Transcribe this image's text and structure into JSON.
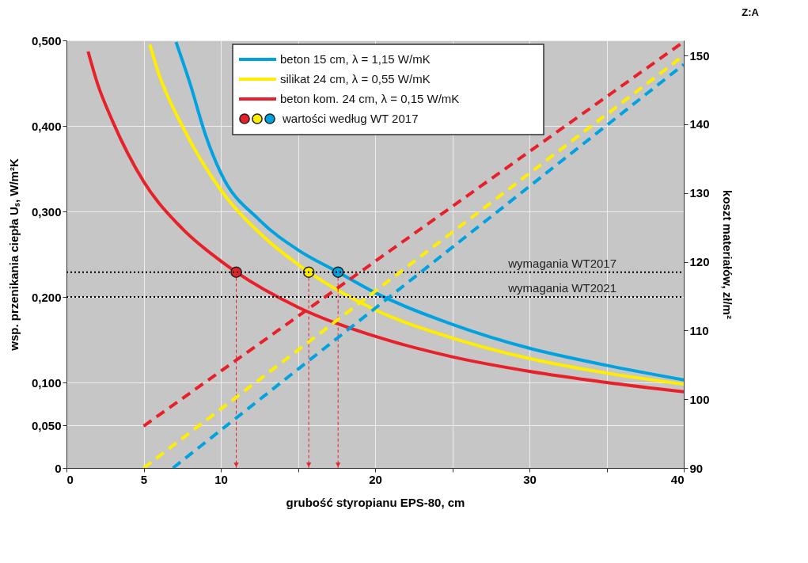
{
  "chart_data": {
    "type": "line",
    "xlabel": "grubość styropianu EPS-80, cm",
    "ylabel": "wsp. przenikania ciepła Uₛ, W/m²K",
    "y2label": "koszt materiałów, zł/m²",
    "annotations": [
      "Z:A"
    ],
    "xlim": [
      0,
      40
    ],
    "xticks": [
      0,
      5,
      10,
      {
        "value": 15,
        "label": null
      },
      20,
      {
        "value": 25,
        "label": null
      },
      30,
      {
        "value": 35,
        "label": null
      },
      40
    ],
    "ylim": [
      0,
      0.5
    ],
    "yticks": [
      {
        "value": 0,
        "label": "0"
      },
      {
        "value": 0.05,
        "label": "0,050"
      },
      {
        "value": 0.1,
        "label": "0,100"
      },
      {
        "value": 0.2,
        "label": "0,200"
      },
      {
        "value": 0.3,
        "label": "0,300"
      },
      {
        "value": 0.4,
        "label": "0,400"
      },
      {
        "value": 0.5,
        "label": "0,500"
      }
    ],
    "y2lim": [
      90,
      152.2
    ],
    "y2ticks": [
      90,
      100,
      110,
      120,
      130,
      140,
      150
    ],
    "grid": true,
    "legend": "top",
    "series": [
      {
        "name": "beton 15 cm, λ = 1,15 W/mK",
        "color": "#00a3e0",
        "line_style": "solid",
        "x": [
          7.1,
          8,
          9,
          10,
          12.5,
          15,
          17.6,
          20,
          25,
          30,
          35,
          40
        ],
        "values": [
          0.498,
          0.45,
          0.39,
          0.345,
          0.29,
          0.255,
          0.229,
          0.205,
          0.168,
          0.14,
          0.12,
          0.103
        ]
      },
      {
        "name": "silikat 24 cm, λ = 0,55 W/mK",
        "color": "#ffee00",
        "line_style": "solid",
        "x": [
          5.4,
          6,
          7.5,
          10,
          12.5,
          15,
          15.7,
          20,
          25,
          30,
          35,
          40
        ],
        "values": [
          0.495,
          0.46,
          0.4,
          0.325,
          0.275,
          0.238,
          0.229,
          0.185,
          0.152,
          0.128,
          0.111,
          0.098
        ]
      },
      {
        "name": "beton kom. 24 cm, λ = 0,15 W/mK",
        "color": "#e8202a",
        "line_style": "solid",
        "x": [
          1.4,
          2,
          3,
          5,
          7.5,
          10,
          11,
          15,
          20,
          25,
          30,
          35,
          40
        ],
        "values": [
          0.487,
          0.45,
          0.405,
          0.335,
          0.28,
          0.242,
          0.229,
          0.188,
          0.154,
          0.13,
          0.113,
          0.1,
          0.089
        ]
      },
      {
        "color": "#e8202a",
        "line_style": "dashed",
        "axis": "y2",
        "x": [
          5,
          40
        ],
        "values": [
          96.1,
          152
        ]
      },
      {
        "color": "#ffee00",
        "line_style": "dashed",
        "axis": "y2",
        "x": [
          5,
          40
        ],
        "values": [
          90,
          150
        ]
      },
      {
        "color": "#00a3e0",
        "line_style": "dashed",
        "axis": "y2",
        "x": [
          6.9,
          40
        ],
        "values": [
          90,
          148.7
        ]
      },
      {
        "name": "wartości według WT 2017",
        "type": "scatter",
        "marker": "circle",
        "x": [
          11,
          15.7,
          17.6
        ],
        "values": [
          0.229,
          0.229,
          0.229
        ],
        "colors": [
          "#e8202a",
          "#ffee00",
          "#00a3e0"
        ]
      }
    ],
    "ref_lines": [
      {
        "axis": "y",
        "value": 0.229,
        "label": "wymagania WT2017",
        "line_style": "dotted",
        "color": "#000000"
      },
      {
        "axis": "y",
        "value": 0.2,
        "label": "wymagania WT2021",
        "line_style": "dotted",
        "color": "#000000"
      }
    ]
  }
}
